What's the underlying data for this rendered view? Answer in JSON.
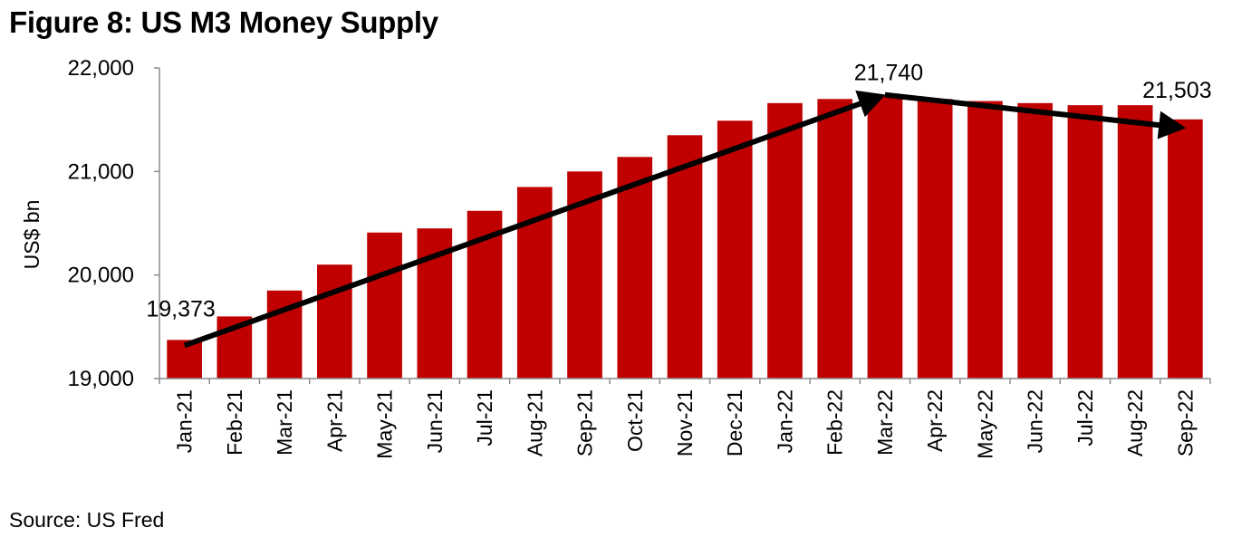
{
  "figure": {
    "title": "Figure 8: US M3 Money Supply",
    "source": "Source: US Fred"
  },
  "colors": {
    "bar": "#c00000",
    "arrow": "#000000",
    "axis": "#8c8c8c"
  },
  "chart_data": {
    "type": "bar",
    "title": "",
    "xlabel": "",
    "ylabel": "US$ bn",
    "ylim": [
      19000,
      22000
    ],
    "yticks": [
      19000,
      20000,
      21000,
      22000
    ],
    "ytick_labels": [
      "19,000",
      "20,000",
      "21,000",
      "22,000"
    ],
    "grid": false,
    "legend": "none",
    "categories": [
      "Jan-21",
      "Feb-21",
      "Mar-21",
      "Apr-21",
      "May-21",
      "Jun-21",
      "Jul-21",
      "Aug-21",
      "Sep-21",
      "Oct-21",
      "Nov-21",
      "Dec-21",
      "Jan-22",
      "Feb-22",
      "Mar-22",
      "Apr-22",
      "May-22",
      "Jun-22",
      "Jul-22",
      "Aug-22",
      "Sep-22"
    ],
    "series": [
      {
        "values": [
          19373,
          19600,
          19850,
          20100,
          20410,
          20450,
          20620,
          20850,
          21000,
          21140,
          21350,
          21490,
          21660,
          21700,
          21740,
          21700,
          21680,
          21660,
          21640,
          21640,
          21503
        ]
      }
    ],
    "annotations": [
      {
        "label": "19,373",
        "category": "Jan-21",
        "value": 19373
      },
      {
        "label": "21,740",
        "category": "Mar-22",
        "value": 21740
      },
      {
        "label": "21,503",
        "category": "Sep-22",
        "value": 21503
      }
    ],
    "trend_arrows": [
      {
        "from_category": "Jan-21",
        "from_value": 19320,
        "to_category": "Mar-22",
        "to_value": 21740
      },
      {
        "from_category": "Mar-22",
        "from_value": 21740,
        "to_category": "Sep-22",
        "to_value": 21420
      }
    ]
  }
}
